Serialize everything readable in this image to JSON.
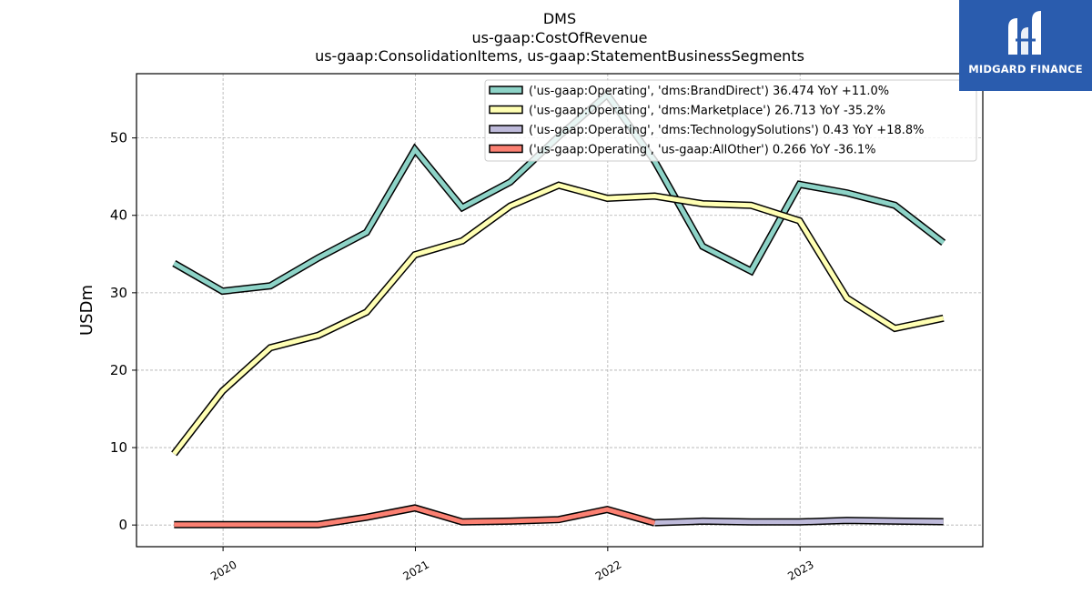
{
  "chart_data": {
    "type": "line",
    "title_lines": [
      "DMS",
      "us-gaap:CostOfRevenue",
      "us-gaap:ConsolidationItems, us-gaap:StatementBusinessSegments"
    ],
    "ylabel": "USDm",
    "xlabel": "",
    "ylim": [
      -2.8,
      58.3
    ],
    "xlim": [
      2019.55,
      2023.95
    ],
    "yticks": [
      0,
      10,
      20,
      30,
      40,
      50
    ],
    "xticks": [
      2020,
      2021,
      2022,
      2023
    ],
    "grid": true,
    "legend_position": "top-right",
    "series": [
      {
        "name": "('us-gaap:Operating', 'dms:BrandDirect') 36.474 YoY +11.0%",
        "color": "#8dd3c7",
        "x": [
          "2019-09-30",
          "2019-12-31",
          "2020-03-31",
          "2020-06-30",
          "2020-09-30",
          "2020-12-31",
          "2021-03-31",
          "2021-06-30",
          "2021-09-30",
          "2021-12-31",
          "2022-03-31",
          "2022-06-30",
          "2022-09-30",
          "2022-12-31",
          "2023-03-31",
          "2023-06-30",
          "2023-09-30"
        ],
        "values": [
          33.8,
          30.2,
          30.9,
          34.5,
          37.8,
          48.5,
          41.0,
          44.3,
          50.2,
          55.6,
          47.0,
          36.0,
          32.8,
          44.0,
          42.9,
          41.3,
          36.474
        ]
      },
      {
        "name": "('us-gaap:Operating', 'dms:Marketplace') 26.713 YoY -35.2%",
        "color": "#ffffb3",
        "x": [
          "2019-09-30",
          "2019-12-31",
          "2020-03-31",
          "2020-06-30",
          "2020-09-30",
          "2020-12-31",
          "2021-03-31",
          "2021-06-30",
          "2021-09-30",
          "2021-12-31",
          "2022-03-31",
          "2022-06-30",
          "2022-09-30",
          "2022-12-31",
          "2023-03-31",
          "2023-06-30",
          "2023-09-30"
        ],
        "values": [
          9.2,
          17.3,
          22.9,
          24.5,
          27.5,
          34.9,
          36.7,
          41.2,
          43.9,
          42.2,
          42.5,
          41.5,
          41.3,
          39.3,
          29.3,
          25.4,
          26.713
        ]
      },
      {
        "name": "('us-gaap:Operating', 'dms:TechnologySolutions') 0.43 YoY +18.8%",
        "color": "#bebada",
        "x": [
          "2022-03-31",
          "2022-06-30",
          "2022-09-30",
          "2022-12-31",
          "2023-03-31",
          "2023-06-30",
          "2023-09-30"
        ],
        "values": [
          0.3,
          0.5,
          0.4,
          0.4,
          0.6,
          0.5,
          0.43
        ]
      },
      {
        "name": "('us-gaap:Operating', 'us-gaap:AllOther') 0.266 YoY -36.1%",
        "color": "#fb8072",
        "x": [
          "2019-09-30",
          "2019-12-31",
          "2020-03-31",
          "2020-06-30",
          "2020-09-30",
          "2020-12-31",
          "2021-03-31",
          "2021-06-30",
          "2021-09-30",
          "2021-12-31",
          "2022-03-31"
        ],
        "values": [
          0.05,
          0.05,
          0.05,
          0.05,
          1.0,
          2.2,
          0.4,
          0.5,
          0.7,
          2.0,
          0.266
        ]
      }
    ]
  },
  "logo": {
    "text": "MIDGARD FINANCE",
    "bg_color": "#2a5cae"
  }
}
